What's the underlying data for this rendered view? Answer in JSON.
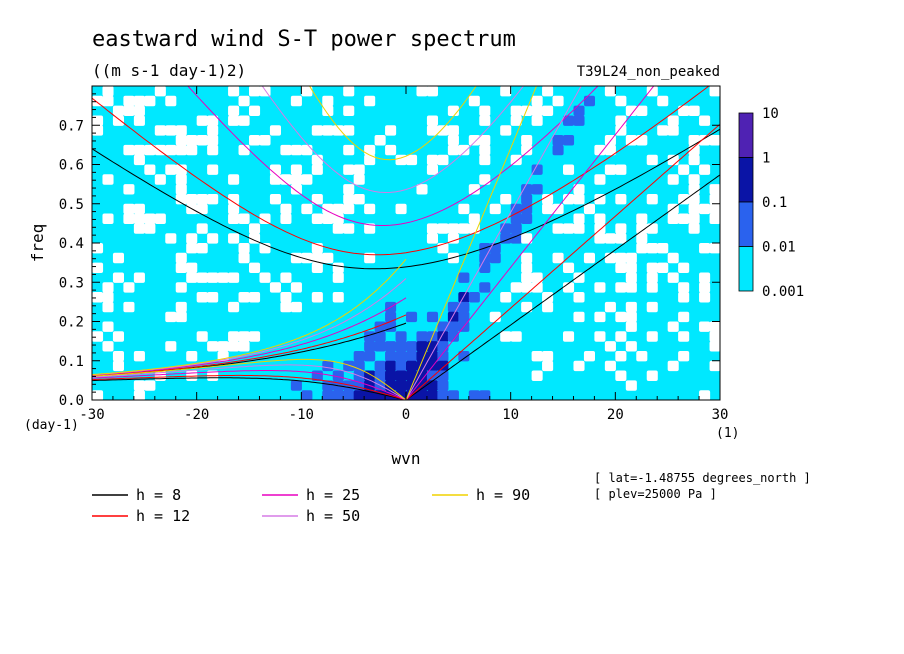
{
  "title": "eastward wind S-T power spectrum",
  "units": "((m s-1 day-1)2)",
  "experiment": "T39L24_non_peaked",
  "chart_data": {
    "type": "heatmap",
    "xlabel": "wvn",
    "ylabel": "freq",
    "x_unit": "(1)",
    "y_unit": "(day-1)",
    "xlim": [
      -30,
      30
    ],
    "ylim": [
      0,
      0.8
    ],
    "x_ticks": [
      -30,
      -20,
      -10,
      0,
      10,
      20,
      30
    ],
    "y_ticks": [
      0.0,
      0.1,
      0.2,
      0.3,
      0.4,
      0.5,
      0.6,
      0.7
    ],
    "x_tick_labels": [
      "-30",
      "-20",
      "-10",
      "0",
      "10",
      "20",
      "30"
    ],
    "y_tick_labels": [
      "0.0",
      "0.1",
      "0.2",
      "0.3",
      "0.4",
      "0.5",
      "0.6",
      "0.7"
    ],
    "colorbar": {
      "levels": [
        "10",
        "1",
        "0.1",
        "0.01",
        "0.001"
      ],
      "colors": [
        "#4f22b3",
        "#0a14a6",
        "#2a62ee",
        "#00e8ff"
      ]
    },
    "dispersion_curves": [
      {
        "label": "h =  8",
        "equivalent_depth_m": 8,
        "color": "#000000"
      },
      {
        "label": "h = 12",
        "equivalent_depth_m": 12,
        "color": "#ff0000"
      },
      {
        "label": "h = 25",
        "equivalent_depth_m": 25,
        "color": "#e800c0"
      },
      {
        "label": "h = 50",
        "equivalent_depth_m": 50,
        "color": "#d67be6"
      },
      {
        "label": "h = 90",
        "equivalent_depth_m": 90,
        "color": "#f0d200"
      }
    ],
    "annotations": [
      "[ lat=-1.48755 degrees_north ]",
      "[ plev=25000 Pa ]"
    ]
  }
}
